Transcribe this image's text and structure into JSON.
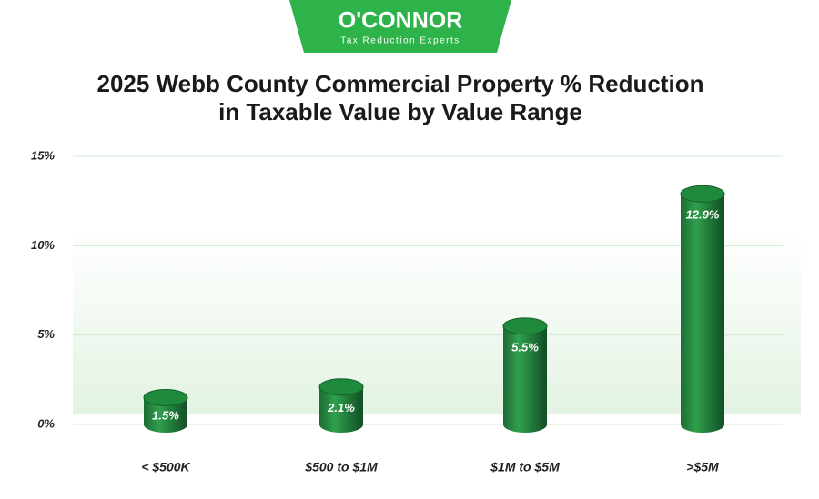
{
  "logo": {
    "name": "O'CONNOR",
    "tagline": "Tax Reduction Experts"
  },
  "chart_data": {
    "type": "bar",
    "title": [
      "2025 Webb County Commercial Property % Reduction",
      "in Taxable Value by Value Range"
    ],
    "categories": [
      "< $500K",
      "$500 to $1M",
      "$1M to $5M",
      ">$5M"
    ],
    "values": [
      1.5,
      2.1,
      5.5,
      12.9
    ],
    "value_labels": [
      "1.5%",
      "2.1%",
      "5.5%",
      "12.9%"
    ],
    "color": "#1f8a3c",
    "ylim": [
      0,
      15
    ],
    "yticks": [
      {
        "value": 0,
        "label": "0%"
      },
      {
        "value": 5,
        "label": "5%"
      },
      {
        "value": 10,
        "label": "10%"
      },
      {
        "value": 15,
        "label": "15%"
      }
    ],
    "grid": true
  }
}
